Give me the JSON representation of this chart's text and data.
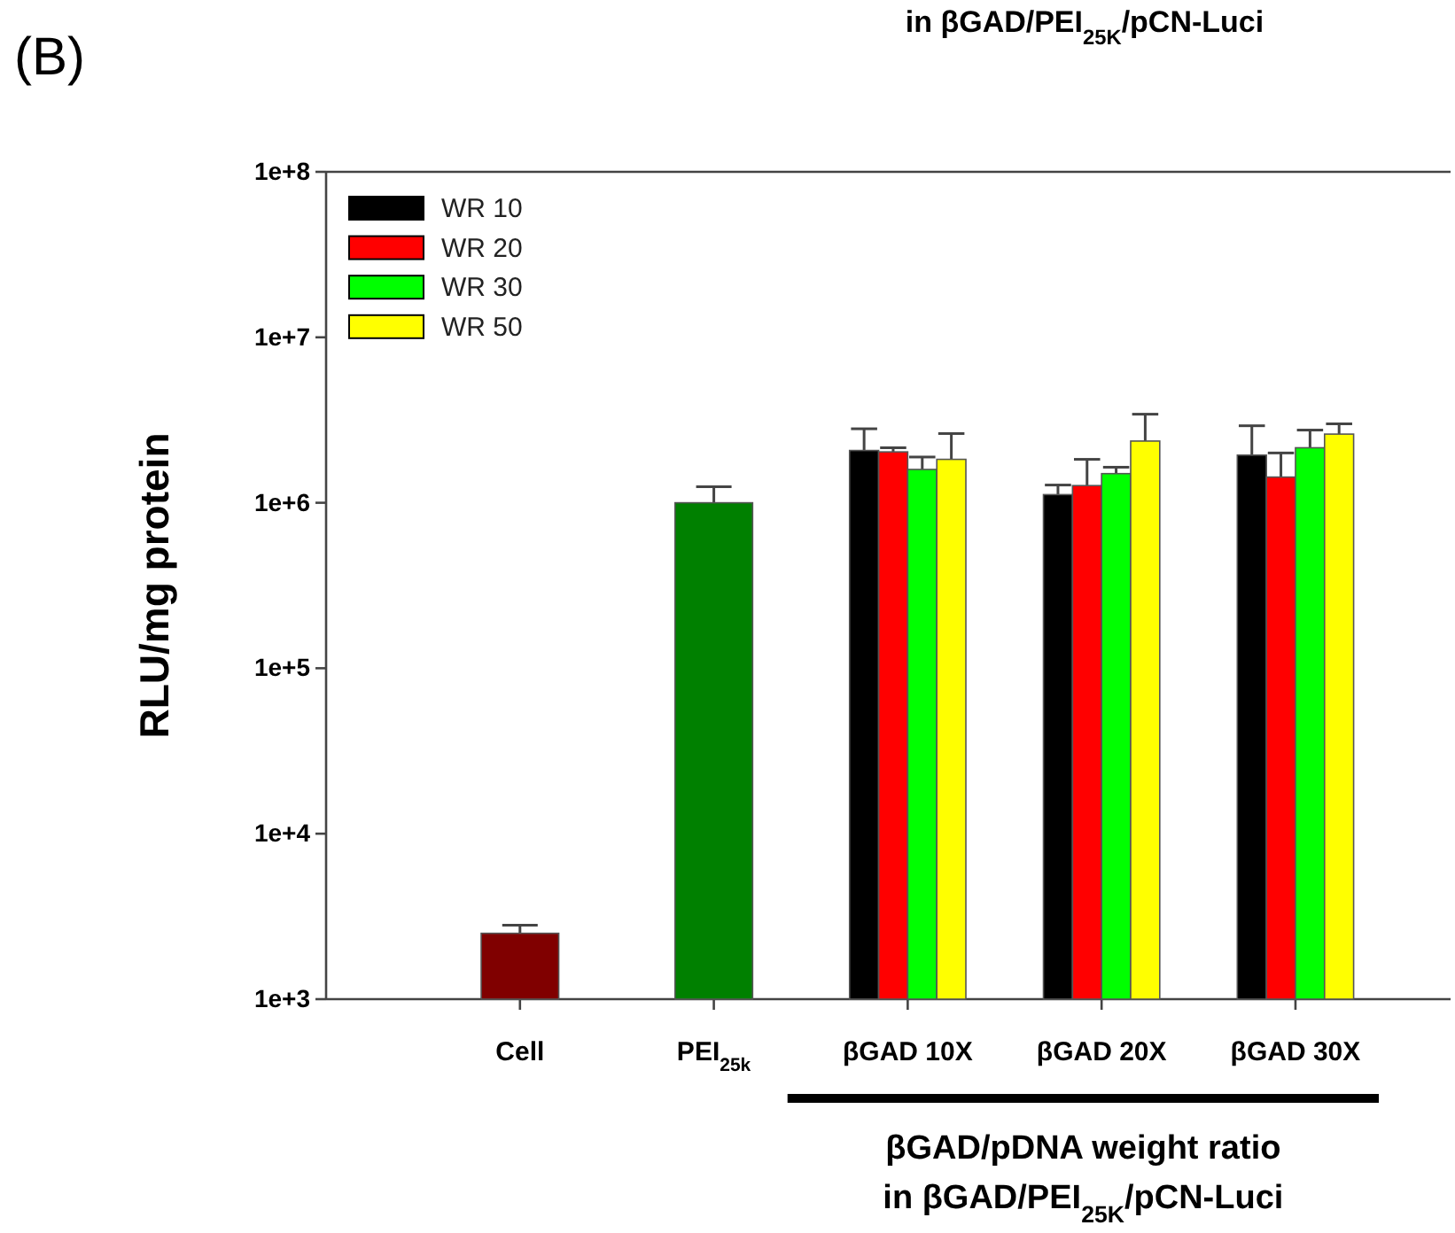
{
  "chart_data": {
    "type": "bar",
    "ylabel": "RLU/mg protein",
    "xlabel": "βGAD/pDNA weight ratio\nin βGAD/PEI$_{25K}$/pCN-Luci",
    "annotations": [
      "(B)",
      "in βGAD/PEI$_{25K}$/pCN-Luci"
    ],
    "categories": [
      "Cell",
      "PEI$_{25k}$",
      "βGAD 10X",
      "βGAD 20X",
      "βGAD 30X"
    ],
    "series": [
      {
        "color": "#800000",
        "values": [
          2500,
          null,
          null,
          null,
          null
        ],
        "errors": [
          [
            2500,
            2800
          ],
          null,
          null,
          null,
          null
        ]
      },
      {
        "color": "#008000",
        "values": [
          null,
          1000000,
          null,
          null,
          null
        ],
        "errors": [
          null,
          [
            1000000,
            1250000
          ],
          null,
          null,
          null
        ]
      },
      {
        "name": "WR 10",
        "color": "#000000",
        "values": [
          null,
          null,
          2070000,
          1120000,
          1940000
        ],
        "errors": [
          null,
          null,
          [
            2070000,
            2800000
          ],
          [
            1120000,
            1280000
          ],
          [
            1940000,
            2920000
          ]
        ]
      },
      {
        "name": "WR 20",
        "color": "#ff0000",
        "values": [
          null,
          null,
          2030000,
          1270000,
          1430000
        ],
        "errors": [
          null,
          null,
          [
            2030000,
            2150000
          ],
          [
            1270000,
            1830000
          ],
          [
            1430000,
            2000000
          ]
        ]
      },
      {
        "name": "WR 30",
        "color": "#00ff00",
        "values": [
          null,
          null,
          1590000,
          1500000,
          2150000
        ],
        "errors": [
          null,
          null,
          [
            1590000,
            1890000
          ],
          [
            1500000,
            1640000
          ],
          [
            2150000,
            2750000
          ]
        ]
      },
      {
        "name": "WR 50",
        "color": "#ffff00",
        "values": [
          null,
          null,
          1830000,
          2360000,
          2600000
        ],
        "errors": [
          null,
          null,
          [
            1830000,
            2620000
          ],
          [
            2360000,
            3430000
          ],
          [
            2600000,
            3000000
          ]
        ]
      }
    ],
    "log": true,
    "ylim": [
      1000,
      100000000
    ],
    "yticks": [
      {
        "value": 1000,
        "label": "1e+3"
      },
      {
        "value": 10000,
        "label": "1e+4"
      },
      {
        "value": 100000,
        "label": "1e+5"
      },
      {
        "value": 1000000,
        "label": "1e+6"
      },
      {
        "value": 10000000,
        "label": "1e+7"
      },
      {
        "value": 100000000,
        "label": "1e+8"
      }
    ],
    "grid": false,
    "legend": "top left"
  }
}
